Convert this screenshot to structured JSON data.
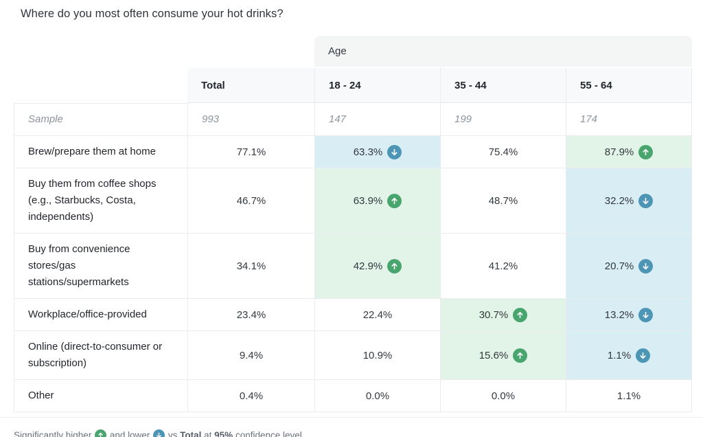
{
  "title": "Where do you most often consume your hot drinks?",
  "chart_data": {
    "type": "table",
    "title": "Where do you most often consume your hot drinks?",
    "column_group_label": "Age",
    "columns": [
      "Total",
      "18 - 24",
      "35 - 44",
      "55 - 64"
    ],
    "sample_row": {
      "label": "Sample",
      "values": [
        "993",
        "147",
        "199",
        "174"
      ]
    },
    "rows": [
      {
        "label": "Brew/prepare them at home",
        "values": [
          "77.1%",
          "63.3%",
          "75.4%",
          "87.9%"
        ],
        "significance": [
          null,
          "lower",
          null,
          "higher"
        ]
      },
      {
        "label": "Buy them from coffee shops (e.g., Starbucks, Costa, independents)",
        "values": [
          "46.7%",
          "63.9%",
          "48.7%",
          "32.2%"
        ],
        "significance": [
          null,
          "higher",
          null,
          "lower"
        ]
      },
      {
        "label": "Buy from convenience stores/gas stations/supermarkets",
        "values": [
          "34.1%",
          "42.9%",
          "41.2%",
          "20.7%"
        ],
        "significance": [
          null,
          "higher",
          null,
          "lower"
        ]
      },
      {
        "label": "Workplace/office-provided",
        "values": [
          "23.4%",
          "22.4%",
          "30.7%",
          "13.2%"
        ],
        "significance": [
          null,
          null,
          "higher",
          "lower"
        ]
      },
      {
        "label": "Online (direct-to-consumer or subscription)",
        "values": [
          "9.4%",
          "10.9%",
          "15.6%",
          "1.1%"
        ],
        "significance": [
          null,
          null,
          "higher",
          "lower"
        ]
      },
      {
        "label": "Other",
        "values": [
          "0.4%",
          "0.0%",
          "0.0%",
          "1.1%"
        ],
        "significance": [
          null,
          null,
          null,
          null
        ]
      }
    ],
    "significance_note": "Significantly higher and lower vs Total at 95% confidence level."
  },
  "footnote": {
    "segments": [
      {
        "text": "Significantly higher "
      },
      {
        "icon": "higher"
      },
      {
        "text": " and lower "
      },
      {
        "icon": "lower"
      },
      {
        "text": " vs "
      },
      {
        "text": "Total",
        "bold": true
      },
      {
        "text": " at "
      },
      {
        "text": "95%",
        "bold": true
      },
      {
        "text": " confidence level."
      }
    ]
  },
  "colors": {
    "higher_badge": "#49a56e",
    "lower_badge": "#4d95b5",
    "higher_cell_bg": "#e1f4e7",
    "lower_cell_bg": "#d9edf5"
  }
}
